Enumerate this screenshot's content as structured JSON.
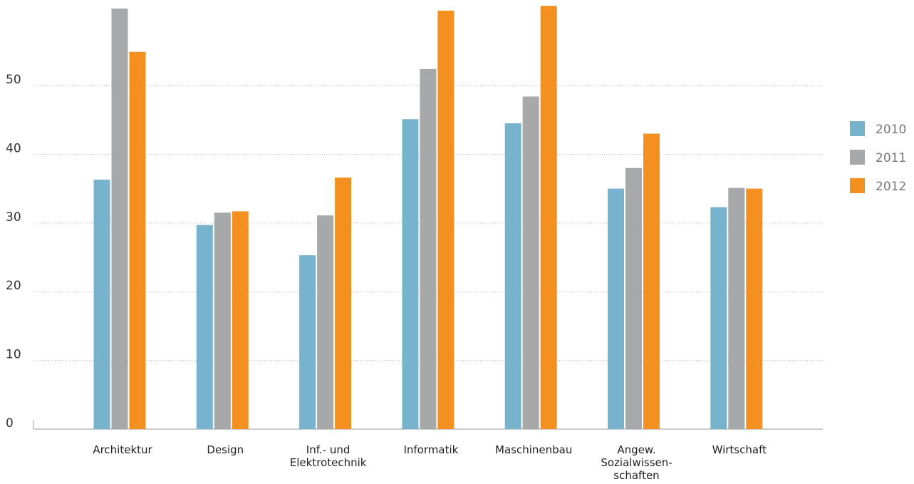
{
  "chart_data": {
    "type": "bar",
    "title": "",
    "xlabel": "",
    "ylabel": "",
    "ylim": [
      0,
      62
    ],
    "yticks": [
      0,
      10,
      20,
      30,
      40,
      50
    ],
    "grid": true,
    "legend_position": "right",
    "categories": [
      [
        "Architektur"
      ],
      [
        "Design"
      ],
      [
        "Inf.- und",
        "Elektrotechnik"
      ],
      [
        "Informatik"
      ],
      [
        "Maschinenbau"
      ],
      [
        "Angew.",
        "Sozialwissen-",
        "schaften"
      ],
      [
        "Wirtschaft"
      ]
    ],
    "series": [
      {
        "name": "2010",
        "color": "#77b3cd",
        "values": [
          36.3,
          29.7,
          25.3,
          45.1,
          44.5,
          35.0,
          32.3
        ]
      },
      {
        "name": "2011",
        "color": "#a7a8aa",
        "values": [
          61.2,
          31.5,
          31.1,
          52.4,
          48.4,
          38.0,
          35.1
        ]
      },
      {
        "name": "2012",
        "color": "#f39020",
        "values": [
          54.9,
          31.7,
          36.6,
          60.9,
          61.6,
          43.0,
          35.0
        ]
      }
    ]
  }
}
